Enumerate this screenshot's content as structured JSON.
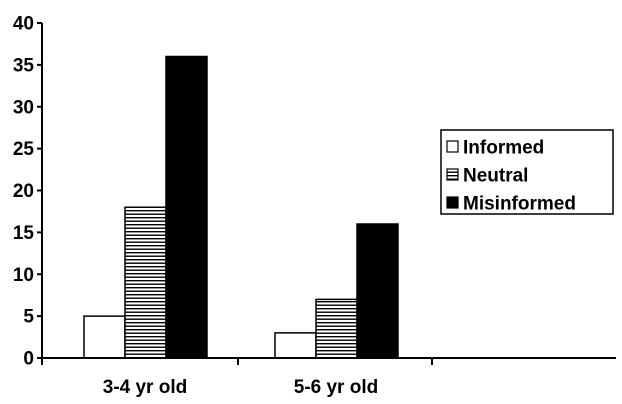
{
  "chart_data": {
    "type": "bar",
    "title": "",
    "xlabel": "",
    "ylabel": "",
    "ylim": [
      0,
      40
    ],
    "yticks": [
      0,
      5,
      10,
      15,
      20,
      25,
      30,
      35,
      40
    ],
    "grid": false,
    "legend_position": "right",
    "categories": [
      "3-4 yr old",
      "5-6 yr old"
    ],
    "series": [
      {
        "name": "Informed",
        "values": [
          5,
          3
        ],
        "fill": "white"
      },
      {
        "name": "Neutral",
        "values": [
          18,
          7
        ],
        "fill": "horizontal-stripes"
      },
      {
        "name": "Misinformed",
        "values": [
          36,
          16
        ],
        "fill": "black"
      }
    ]
  }
}
